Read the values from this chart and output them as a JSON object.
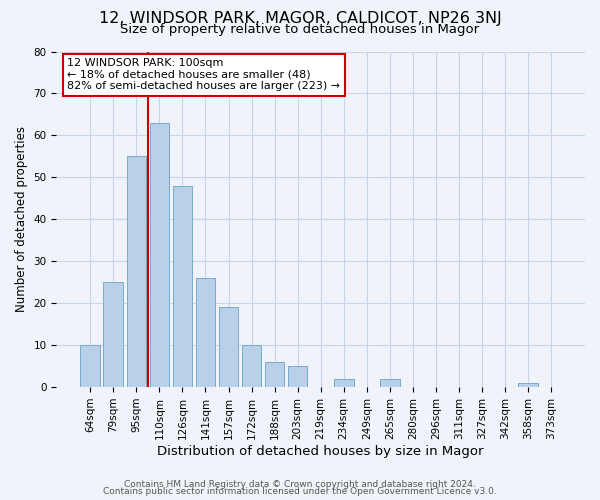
{
  "title1": "12, WINDSOR PARK, MAGOR, CALDICOT, NP26 3NJ",
  "title2": "Size of property relative to detached houses in Magor",
  "xlabel": "Distribution of detached houses by size in Magor",
  "ylabel": "Number of detached properties",
  "categories": [
    "64sqm",
    "79sqm",
    "95sqm",
    "110sqm",
    "126sqm",
    "141sqm",
    "157sqm",
    "172sqm",
    "188sqm",
    "203sqm",
    "219sqm",
    "234sqm",
    "249sqm",
    "265sqm",
    "280sqm",
    "296sqm",
    "311sqm",
    "327sqm",
    "342sqm",
    "358sqm",
    "373sqm"
  ],
  "values": [
    10,
    25,
    55,
    63,
    48,
    26,
    19,
    10,
    6,
    5,
    0,
    2,
    0,
    2,
    0,
    0,
    0,
    0,
    0,
    1,
    0
  ],
  "bar_color": "#b8d0e8",
  "bar_edge_color": "#7aaacb",
  "redline_color": "#cc0000",
  "annotation_lines": [
    "12 WINDSOR PARK: 100sqm",
    "← 18% of detached houses are smaller (48)",
    "82% of semi-detached houses are larger (223) →"
  ],
  "annotation_box_color": "#ffffff",
  "annotation_box_edge": "#cc0000",
  "ylim": [
    0,
    80
  ],
  "yticks": [
    0,
    10,
    20,
    30,
    40,
    50,
    60,
    70,
    80
  ],
  "footer1": "Contains HM Land Registry data © Crown copyright and database right 2024.",
  "footer2": "Contains public sector information licensed under the Open Government Licence v3.0.",
  "title1_fontsize": 11.5,
  "title2_fontsize": 9.5,
  "xlabel_fontsize": 9.5,
  "ylabel_fontsize": 8.5,
  "tick_fontsize": 7.5,
  "footer_fontsize": 6.5,
  "annotation_fontsize": 8,
  "background_color": "#f0f4fa",
  "plot_bg_color": "#f0f4fa",
  "grid_color": "#c8d4e8"
}
